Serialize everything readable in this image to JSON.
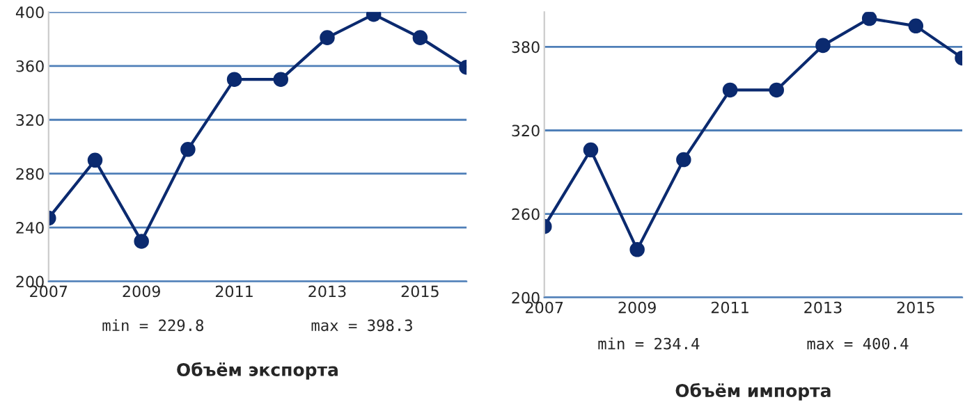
{
  "chart_data": [
    {
      "type": "line",
      "title": "Объём экспорта",
      "x": [
        2007,
        2008,
        2009,
        2010,
        2011,
        2012,
        2013,
        2014,
        2015,
        2016
      ],
      "series": [
        {
          "color": "#0b2a6f",
          "values": [
            247,
            290,
            229.8,
            298,
            350,
            350,
            381,
            398.3,
            381,
            359
          ]
        }
      ],
      "xlim": [
        2007,
        2016
      ],
      "xticks": [
        2007,
        2009,
        2011,
        2013,
        2015
      ],
      "ylim": [
        200,
        400
      ],
      "yticks": [
        200,
        240,
        280,
        320,
        360,
        400
      ],
      "grid": "y",
      "marker": "circle",
      "line_style": "solid",
      "annotations": [
        "min = 229.8",
        "max = 398.3"
      ]
    },
    {
      "type": "line",
      "title": "Объём импорта",
      "x": [
        2007,
        2008,
        2009,
        2010,
        2011,
        2012,
        2013,
        2014,
        2015,
        2016
      ],
      "series": [
        {
          "color": "#0b2a6f",
          "values": [
            251,
            306,
            234.4,
            299,
            349,
            349,
            381,
            400.4,
            395,
            372
          ]
        }
      ],
      "xlim": [
        2007,
        2016
      ],
      "xticks": [
        2007,
        2009,
        2011,
        2013,
        2015
      ],
      "ylim": [
        200,
        405
      ],
      "yticks": [
        200,
        260,
        320,
        380
      ],
      "grid": "y",
      "marker": "circle",
      "line_style": "solid",
      "annotations": [
        "min = 234.4",
        "max = 400.4"
      ]
    }
  ]
}
